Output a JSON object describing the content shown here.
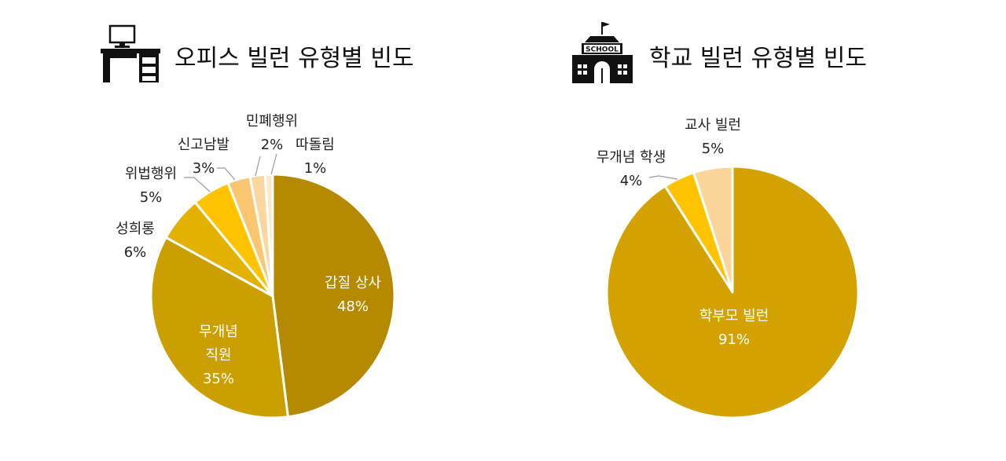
{
  "chart_data": [
    {
      "type": "pie",
      "title": "오피스 빌런 유형별 빈도",
      "icon": "office-desk-icon",
      "slices": [
        {
          "label": "갑질 상사",
          "value": 48,
          "pct": "48%",
          "color": "#B58A00"
        },
        {
          "label": "무개념 직원",
          "label_lines": [
            "무개념",
            "직원"
          ],
          "value": 35,
          "pct": "35%",
          "color": "#CC9F00"
        },
        {
          "label": "성희롱",
          "value": 6,
          "pct": "6%",
          "color": "#E3B100"
        },
        {
          "label": "위법행위",
          "value": 5,
          "pct": "5%",
          "color": "#FFC300"
        },
        {
          "label": "신고남발",
          "value": 3,
          "pct": "3%",
          "color": "#FAC670"
        },
        {
          "label": "민폐행위",
          "value": 2,
          "pct": "2%",
          "color": "#FBD7A0"
        },
        {
          "label": "따돌림",
          "value": 1,
          "pct": "1%",
          "color": "#FCE8CA"
        }
      ]
    },
    {
      "type": "pie",
      "title": "학교 빌런 유형별 빈도",
      "icon": "school-building-icon",
      "icon_sign": "SCHOOL",
      "slices": [
        {
          "label": "학부모 빌런",
          "value": 91,
          "pct": "91%",
          "color": "#D4A200"
        },
        {
          "label": "무개념 학생",
          "value": 4,
          "pct": "4%",
          "color": "#FFC300"
        },
        {
          "label": "교사 빌런",
          "value": 5,
          "pct": "5%",
          "color": "#FCD59A"
        }
      ]
    }
  ]
}
